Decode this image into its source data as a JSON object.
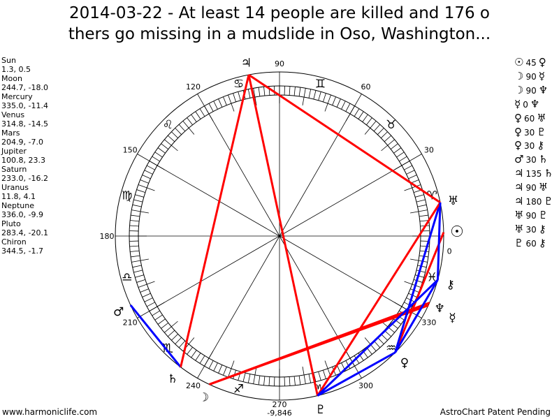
{
  "title": {
    "line1": "2014-03-22 - At least 14 people are killed and 176 o",
    "line2": "thers go missing in a mudslide in Oso, Washington..."
  },
  "planets": [
    {
      "name": "Sun",
      "glyph": "☉",
      "position": "1.3, 0.5",
      "lon": 1.3
    },
    {
      "name": "Moon",
      "glyph": "☽",
      "position": "244.7, -18.0",
      "lon": 244.7
    },
    {
      "name": "Mercury",
      "glyph": "☿",
      "position": "335.0, -11.4",
      "lon": 335.0
    },
    {
      "name": "Venus",
      "glyph": "♀",
      "position": "314.8, -14.5",
      "lon": 314.8
    },
    {
      "name": "Mars",
      "glyph": "♂",
      "position": "204.9, -7.0",
      "lon": 204.9
    },
    {
      "name": "Jupiter",
      "glyph": "♃",
      "position": "100.8, 23.3",
      "lon": 100.8
    },
    {
      "name": "Saturn",
      "glyph": "♄",
      "position": "233.0, -16.2",
      "lon": 233.0
    },
    {
      "name": "Uranus",
      "glyph": "♅",
      "position": "11.8, 4.1",
      "lon": 11.8
    },
    {
      "name": "Neptune",
      "glyph": "♆",
      "position": "336.0, -9.9",
      "lon": 336.0
    },
    {
      "name": "Pluto",
      "glyph": "♇",
      "position": "283.4, -20.1",
      "lon": 283.4
    },
    {
      "name": "Chiron",
      "glyph": "⚷",
      "position": "344.5, -1.7",
      "lon": 344.5
    }
  ],
  "aspects": [
    {
      "from": "Sun",
      "from_glyph": "☉",
      "angle": "45",
      "to": "Venus",
      "to_glyph": "♀",
      "color": "#ff0000"
    },
    {
      "from": "Moon",
      "from_glyph": "☽",
      "angle": "90",
      "to": "Mercury",
      "to_glyph": "☿",
      "color": "#ff0000"
    },
    {
      "from": "Moon",
      "from_glyph": "☽",
      "angle": "90",
      "to": "Neptune",
      "to_glyph": "♆",
      "color": "#ff0000"
    },
    {
      "from": "Mercury",
      "from_glyph": "☿",
      "angle": "0",
      "to": "Neptune",
      "to_glyph": "♆",
      "color": "#ff0000"
    },
    {
      "from": "Venus",
      "from_glyph": "♀",
      "angle": "60",
      "to": "Uranus",
      "to_glyph": "♅",
      "color": "#0000ff"
    },
    {
      "from": "Venus",
      "from_glyph": "♀",
      "angle": "30",
      "to": "Pluto",
      "to_glyph": "♇",
      "color": "#0000ff"
    },
    {
      "from": "Venus",
      "from_glyph": "♀",
      "angle": "30",
      "to": "Chiron",
      "to_glyph": "⚷",
      "color": "#0000ff"
    },
    {
      "from": "Mars",
      "from_glyph": "♂",
      "angle": "30",
      "to": "Saturn",
      "to_glyph": "♄",
      "color": "#0000ff"
    },
    {
      "from": "Jupiter",
      "from_glyph": "♃",
      "angle": "135",
      "to": "Saturn",
      "to_glyph": "♄",
      "color": "#ff0000"
    },
    {
      "from": "Jupiter",
      "from_glyph": "♃",
      "angle": "90",
      "to": "Uranus",
      "to_glyph": "♅",
      "color": "#ff0000"
    },
    {
      "from": "Jupiter",
      "from_glyph": "♃",
      "angle": "180",
      "to": "Pluto",
      "to_glyph": "♇",
      "color": "#ff0000"
    },
    {
      "from": "Uranus",
      "from_glyph": "♅",
      "angle": "90",
      "to": "Pluto",
      "to_glyph": "♇",
      "color": "#ff0000"
    },
    {
      "from": "Uranus",
      "from_glyph": "♅",
      "angle": "30",
      "to": "Chiron",
      "to_glyph": "⚷",
      "color": "#0000ff"
    },
    {
      "from": "Pluto",
      "from_glyph": "♇",
      "angle": "60",
      "to": "Chiron",
      "to_glyph": "⚷",
      "color": "#0000ff"
    }
  ],
  "zodiac": [
    "♈",
    "♉",
    "♊",
    "♋",
    "♌",
    "♍",
    "♎",
    "♏",
    "♐",
    "♑",
    "♒",
    "♓"
  ],
  "degree_labels": [
    "0",
    "30",
    "60",
    "90",
    "120",
    "150",
    "180",
    "210",
    "240",
    "270",
    "300",
    "330"
  ],
  "bottom_value": "-9,846",
  "footer": {
    "left": "www.harmoniclife.com",
    "right": "AstroChart Patent Pending"
  },
  "colors": {
    "hard_aspect": "#ff0000",
    "soft_aspect": "#0000ff"
  }
}
